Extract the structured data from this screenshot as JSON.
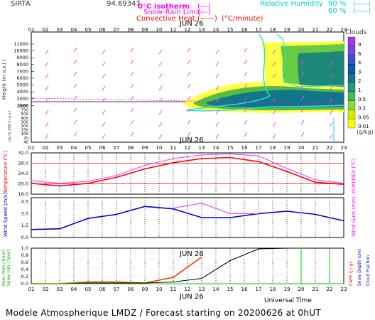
{
  "header": {
    "station": "SIRTA",
    "numeric_code": "94.69347",
    "legend_left": {
      "isotherm_label": "0°C isotherm",
      "snow_rain_label": "Snow-Rain Limit",
      "convective_label": "Convective Heat",
      "convective_unit": "(°C/minute)"
    },
    "legend_right": {
      "rh_label": "Relative Humidity",
      "rh_90": "90 %",
      "rh_60": "60 %"
    }
  },
  "hours": [
    "01",
    "02",
    "03",
    "04",
    "05",
    "06",
    "07",
    "08",
    "09",
    "10",
    "11",
    "12",
    "13",
    "14",
    "15",
    "16",
    "17",
    "18",
    "19",
    "20",
    "21",
    "22",
    "23"
  ],
  "date_label": "JUN 26",
  "footer": {
    "universal_time": "Universal Time",
    "forecast_line": "Modele Atmospherique LMDZ / Forecast starting on 20200626 at 0hUT"
  },
  "colors": {
    "temperature": "#ff0000",
    "humidex": "#ee44ee",
    "wind": "#0000cc",
    "rain": "#ff3300",
    "snow": "#00cc00",
    "cape": "#000000",
    "rh": "#33cccc",
    "magenta": "#dd00dd",
    "cloud_scale": [
      "#ffff00",
      "#ccee00",
      "#88dd33",
      "#44bb55",
      "#229977",
      "#117788",
      "#1155aa",
      "#3355cc",
      "#7744dd",
      "#aa33ee",
      "#cc00ff"
    ]
  },
  "chart_data": [
    {
      "panel": "cloud-height",
      "type": "heatmap",
      "ylabel": "Height (m a.s.l.)",
      "ylabel_low": "Up to 200 m a.s.l.",
      "yticks": [
        "11000",
        "10000",
        "9000",
        "8000",
        "7000",
        "6000",
        "5000",
        "4000",
        "3000",
        "2000",
        "1000",
        "750",
        "500",
        "400",
        "300",
        "200",
        "150",
        "100",
        "70",
        "40"
      ],
      "legend_title": "Clouds",
      "legend_levels": [
        "9",
        "6",
        "4",
        "3",
        "2",
        "1",
        "0.5",
        "0.2",
        "0.05",
        "0.01"
      ],
      "legend_unit": "(g/kg)",
      "zero_isotherm_height_m": 3900
    },
    {
      "panel": "temperature",
      "type": "line",
      "ylabel": "Temperature (°C)",
      "ylabel_right": "HUMIDEX (°C)",
      "yticks": [
        "32.0",
        "28.0",
        "24.0",
        "20.0",
        "16.0"
      ],
      "ylim": [
        16,
        32
      ],
      "hours": [
        1,
        3,
        5,
        7,
        9,
        11,
        13,
        15,
        17,
        19,
        21,
        23
      ],
      "series": [
        {
          "name": "Temperature",
          "values": [
            20.2,
            19.2,
            20.2,
            22.5,
            25.8,
            28.2,
            29.8,
            30.2,
            28.6,
            24.8,
            20.6,
            19.8
          ]
        },
        {
          "name": "Humidex",
          "values": [
            21.2,
            20.2,
            21.0,
            23.2,
            27.2,
            29.8,
            31.2,
            31.6,
            30.8,
            26.0,
            21.6,
            20.2
          ]
        }
      ]
    },
    {
      "panel": "wind",
      "type": "line",
      "ylabel": "Wind Speed (m/s)",
      "ylabel_right": "Wind Gust (m/s)",
      "yticks": [
        "4.5",
        "3.0",
        "1.5",
        "0.0"
      ],
      "ylim": [
        0,
        5
      ],
      "hours": [
        1,
        3,
        5,
        7,
        9,
        11,
        13,
        15,
        17,
        19,
        21,
        23
      ],
      "series": [
        {
          "name": "Wind Speed",
          "values": [
            1.0,
            1.1,
            2.4,
            2.9,
            3.9,
            3.6,
            2.5,
            2.5,
            3.0,
            3.3,
            2.9,
            2.1
          ]
        },
        {
          "name": "Wind Gust",
          "values": [
            null,
            null,
            null,
            null,
            null,
            3.7,
            4.3,
            3.0,
            3.0,
            null,
            null,
            null
          ]
        }
      ]
    },
    {
      "panel": "precipitation",
      "type": "line",
      "ylabel": "Rain (mm / hour)",
      "ylabel2": "Snow (cm / hour)",
      "ylabel_right": "CAPE (J / g)",
      "ylabel_right2": "Snow Depth (cm)",
      "ylabel_right3": "Cloud Fraction",
      "yticks": [
        "1.0",
        "0.8",
        "0.6",
        "0.4",
        "0.2",
        "0.0"
      ],
      "ylim": [
        0,
        1
      ],
      "hours": [
        1,
        3,
        5,
        7,
        9,
        11,
        13,
        15,
        17,
        19,
        21,
        23
      ],
      "series": [
        {
          "name": "Rain",
          "values": [
            0,
            0,
            0.05,
            0.05,
            0.02,
            0.18,
            0.75,
            null,
            null,
            null,
            null,
            null
          ]
        },
        {
          "name": "CAPE",
          "values": [
            0,
            0,
            0.02,
            0.02,
            0.02,
            0.05,
            0.15,
            0.65,
            0.98,
            1.0,
            1.0,
            1.0
          ]
        },
        {
          "name": "Snow",
          "values": [
            0,
            0,
            0,
            0,
            0,
            0,
            0,
            0,
            0,
            0,
            0,
            0
          ]
        }
      ]
    }
  ]
}
